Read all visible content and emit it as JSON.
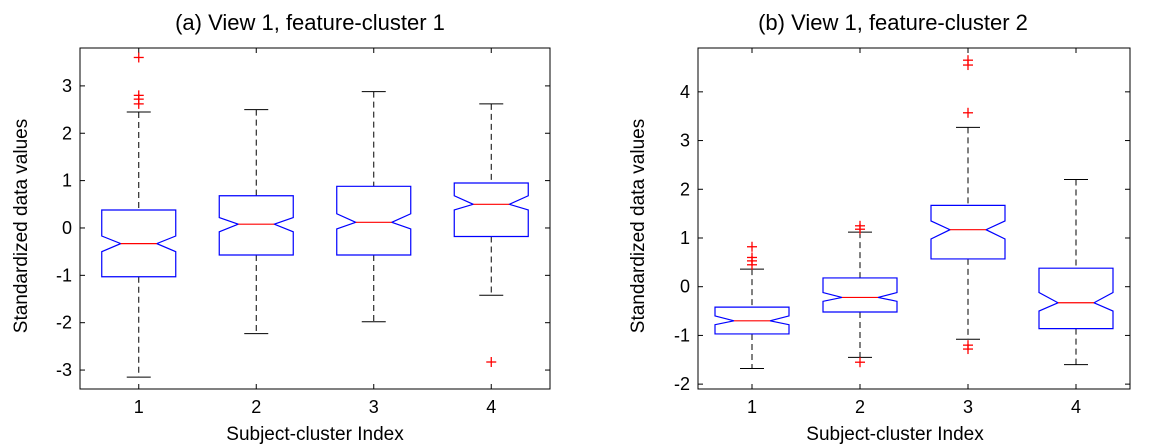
{
  "chart_data": [
    {
      "type": "boxplot",
      "title": "(a) View 1, feature-cluster 1",
      "xlabel": "Subject-cluster Index",
      "ylabel": "Standardized data values",
      "categories": [
        "1",
        "2",
        "3",
        "4"
      ],
      "ylim": [
        -3.4,
        3.8
      ],
      "yticks": [
        -3,
        -2,
        -1,
        0,
        1,
        2,
        3
      ],
      "notched": true,
      "colors": {
        "box": "#0000ff",
        "median": "#ff0000",
        "whisker": "#000000",
        "outlier": "#ff0000"
      },
      "boxes": [
        {
          "lower_whisker": -3.15,
          "q1": -1.03,
          "notch_low": -0.5,
          "median": -0.33,
          "notch_high": -0.17,
          "q3": 0.38,
          "upper_whisker": 2.45,
          "outliers": [
            2.62,
            2.72,
            2.8,
            3.6
          ]
        },
        {
          "lower_whisker": -2.23,
          "q1": -0.57,
          "notch_low": -0.08,
          "median": 0.08,
          "notch_high": 0.22,
          "q3": 0.68,
          "upper_whisker": 2.5,
          "outliers": []
        },
        {
          "lower_whisker": -1.98,
          "q1": -0.57,
          "notch_low": -0.02,
          "median": 0.12,
          "notch_high": 0.3,
          "q3": 0.88,
          "upper_whisker": 2.88,
          "outliers": []
        },
        {
          "lower_whisker": -1.42,
          "q1": -0.18,
          "notch_low": 0.38,
          "median": 0.5,
          "notch_high": 0.68,
          "q3": 0.95,
          "upper_whisker": 2.62,
          "outliers": [
            -2.83
          ]
        }
      ]
    },
    {
      "type": "boxplot",
      "title": "(b) View 1, feature-cluster 2",
      "xlabel": "Subject-cluster Index",
      "ylabel": "Standardized data values",
      "categories": [
        "1",
        "2",
        "3",
        "4"
      ],
      "ylim": [
        -2.1,
        4.9
      ],
      "yticks": [
        -2,
        -1,
        0,
        1,
        2,
        3,
        4
      ],
      "notched": true,
      "colors": {
        "box": "#0000ff",
        "median": "#ff0000",
        "whisker": "#000000",
        "outlier": "#ff0000"
      },
      "boxes": [
        {
          "lower_whisker": -1.68,
          "q1": -0.97,
          "notch_low": -0.78,
          "median": -0.7,
          "notch_high": -0.6,
          "q3": -0.42,
          "upper_whisker": 0.36,
          "outliers": [
            0.45,
            0.53,
            0.6,
            0.82
          ]
        },
        {
          "lower_whisker": -1.45,
          "q1": -0.52,
          "notch_low": -0.3,
          "median": -0.22,
          "notch_high": -0.12,
          "q3": 0.18,
          "upper_whisker": 1.12,
          "outliers": [
            -1.55,
            1.18,
            1.25
          ]
        },
        {
          "lower_whisker": -1.08,
          "q1": 0.57,
          "notch_low": 0.98,
          "median": 1.17,
          "notch_high": 1.35,
          "q3": 1.67,
          "upper_whisker": 3.27,
          "outliers": [
            -1.2,
            -1.28,
            3.57,
            4.55,
            4.65
          ]
        },
        {
          "lower_whisker": -1.6,
          "q1": -0.86,
          "notch_low": -0.5,
          "median": -0.33,
          "notch_high": -0.12,
          "q3": 0.38,
          "upper_whisker": 2.2,
          "outliers": []
        }
      ]
    }
  ]
}
